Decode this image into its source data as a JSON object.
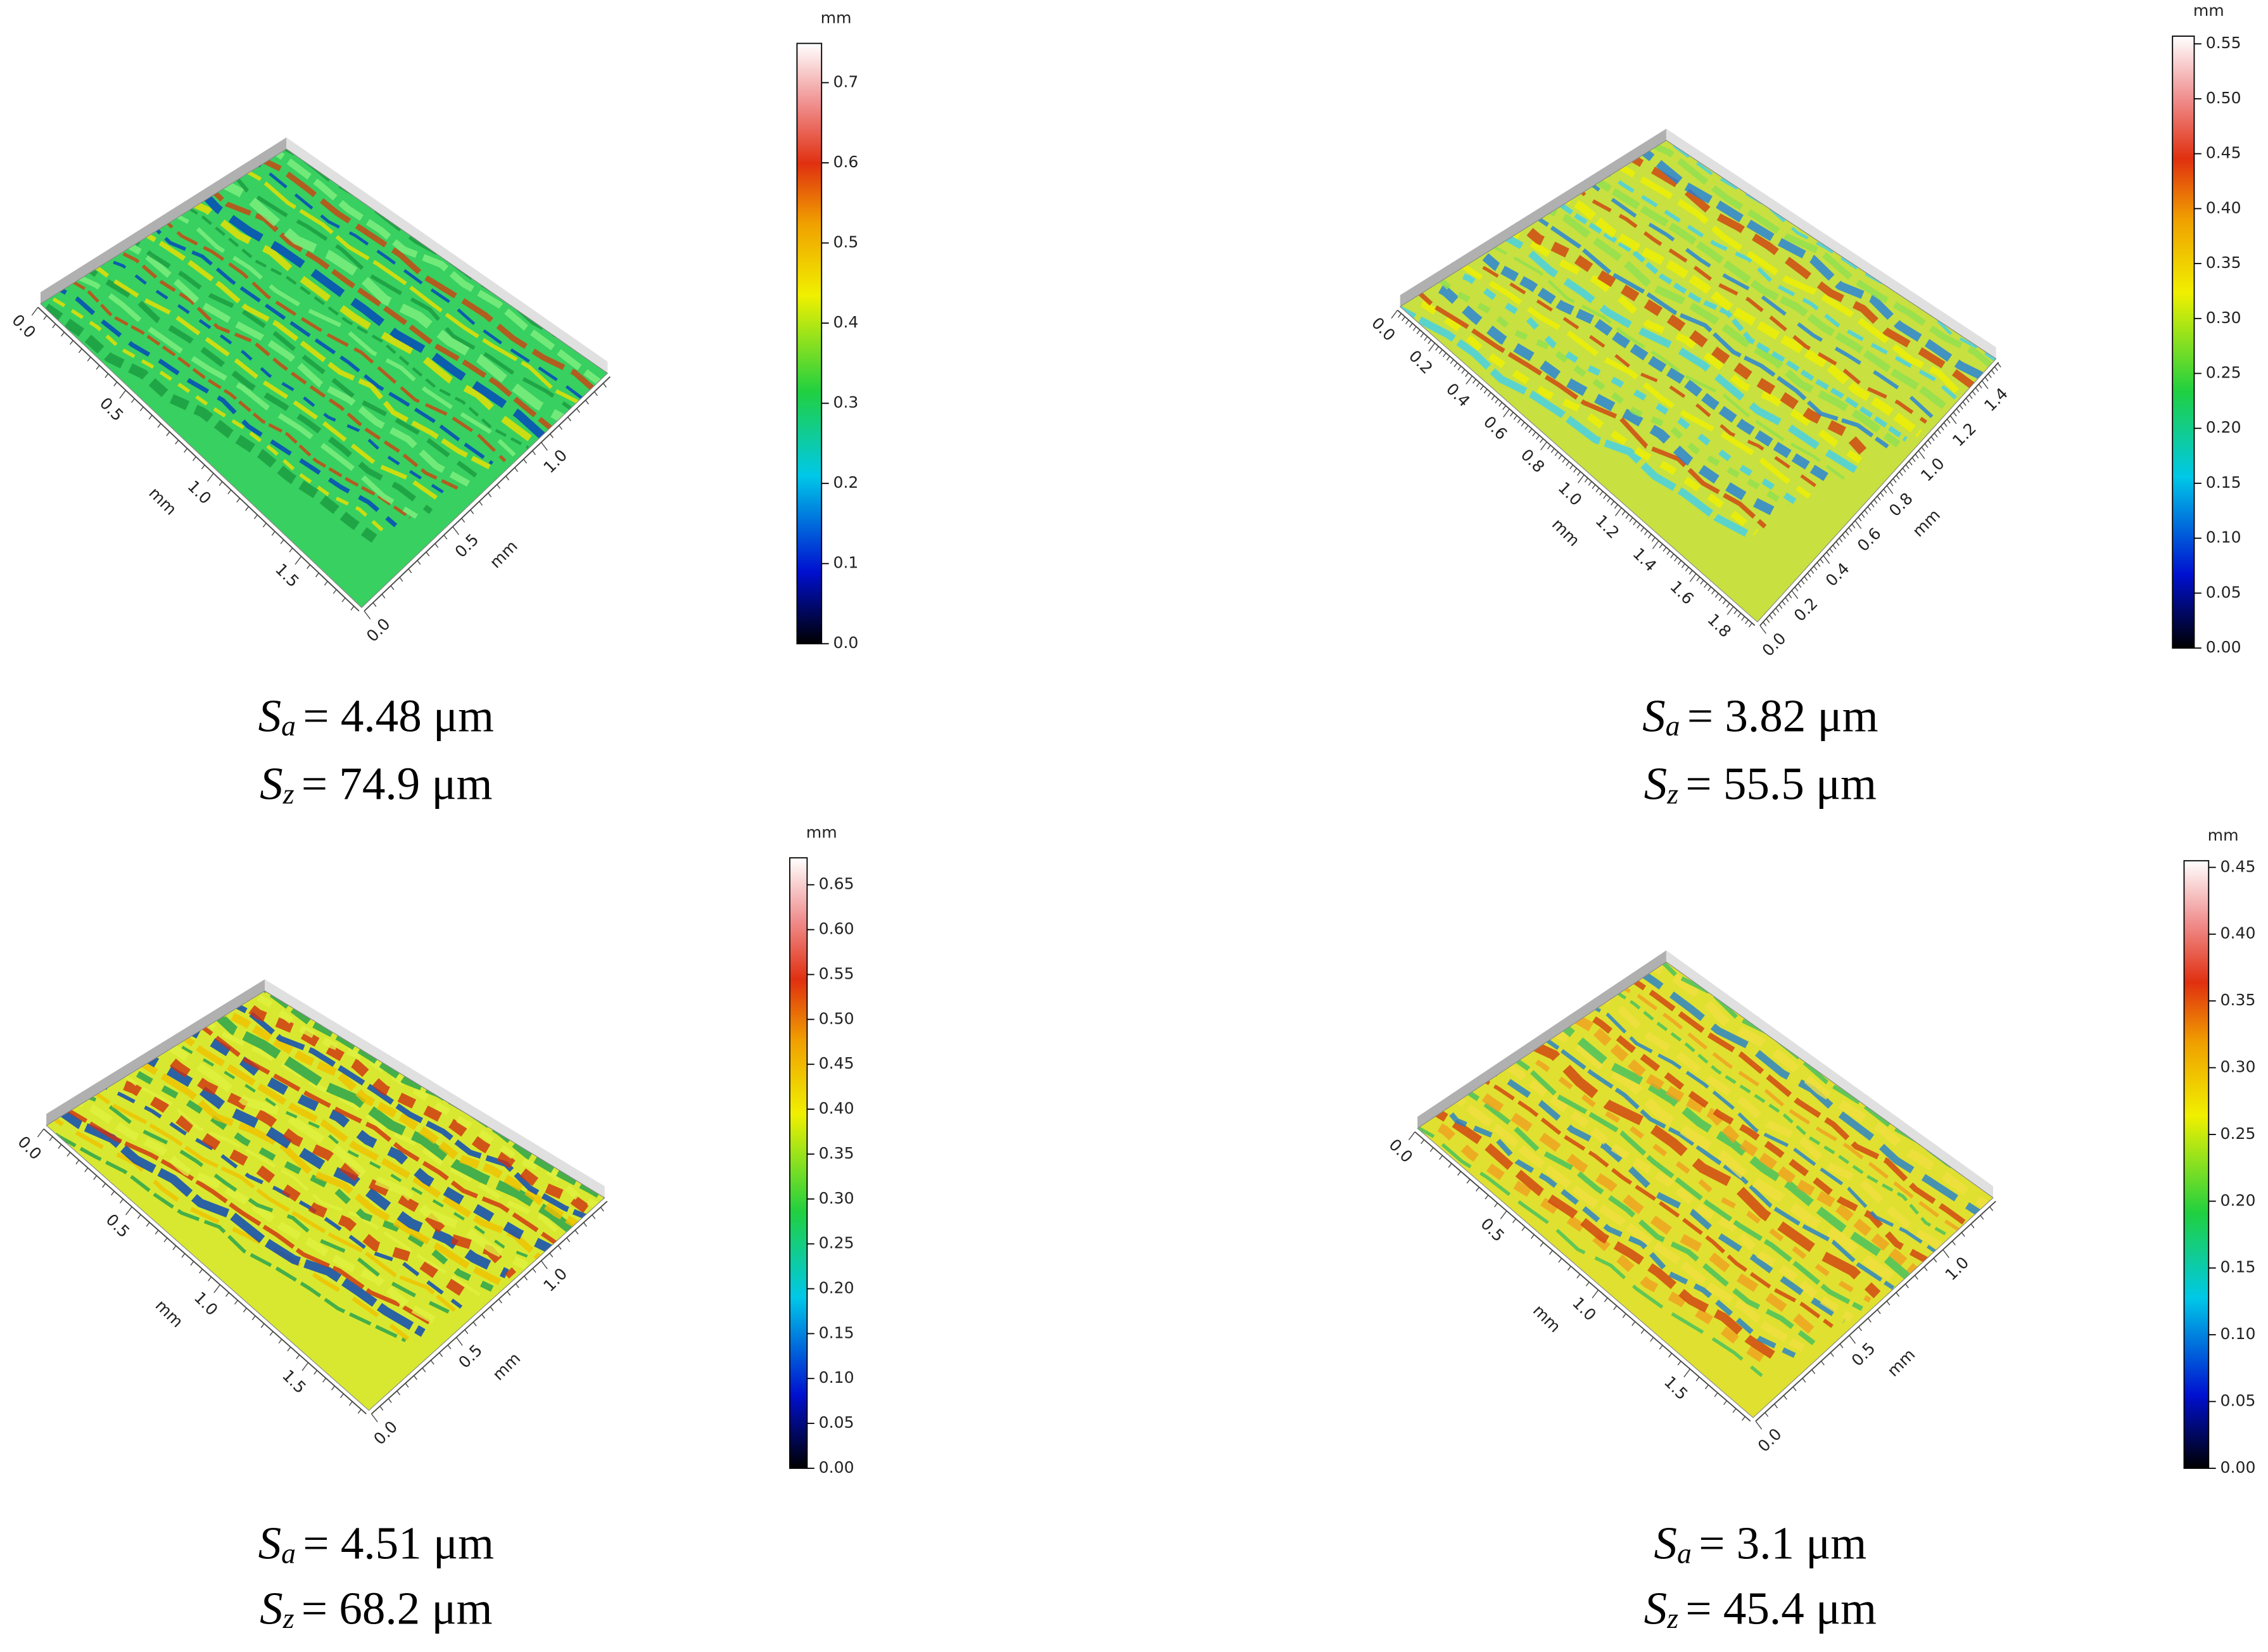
{
  "panels": [
    {
      "colorbar": {
        "unit": "mm",
        "ylim": [
          0,
          0.749
        ],
        "yticks": [
          {
            "value": 0,
            "label": "0.0"
          },
          0.1,
          0.2,
          0.3,
          0.4,
          0.5,
          0.6,
          0.7
        ]
      },
      "axes": {
        "left": {
          "ticks": [
            "0.0",
            "0.5",
            "1.0",
            "1.5"
          ],
          "label": "mm"
        },
        "right": {
          "ticks": [
            "0.0",
            "0.5",
            "1.0"
          ],
          "label": "mm"
        }
      },
      "sa": {
        "symbol": "S",
        "subscript": "a",
        "text": "= 4.48 μm"
      },
      "sz": {
        "symbol": "S",
        "subscript": "z",
        "text": "= 74.9 μm"
      }
    },
    {
      "colorbar": {
        "unit": "mm",
        "ylim": [
          0,
          0.557
        ],
        "yticks": [
          {
            "value": 0,
            "label": "0.00"
          },
          0.05,
          {
            "value": 0.1,
            "label": "0.10"
          },
          0.15,
          {
            "value": 0.2,
            "label": "0.20"
          },
          0.25,
          {
            "value": 0.3,
            "label": "0.30"
          },
          0.35,
          {
            "value": 0.4,
            "label": "0.40"
          },
          0.45,
          {
            "value": 0.5,
            "label": "0.50"
          },
          0.55
        ]
      },
      "axes": {
        "left": {
          "ticks": [
            "0.0",
            "0.2",
            "0.4",
            "0.6",
            "0.8",
            "1.0",
            "1.2",
            "1.4",
            "1.6",
            "1.8"
          ],
          "label": "mm"
        },
        "right": {
          "ticks": [
            "0.0",
            "0.2",
            "0.4",
            "0.6",
            "0.8",
            "1.0",
            "1.2",
            "1.4"
          ],
          "label": "mm"
        }
      },
      "sa": {
        "symbol": "S",
        "subscript": "a",
        "text": "= 3.82 μm"
      },
      "sz": {
        "symbol": "S",
        "subscript": "z",
        "text": "= 55.5 μm"
      }
    },
    {
      "colorbar": {
        "unit": "mm",
        "ylim": [
          0,
          0.68
        ],
        "yticks": [
          {
            "value": 0,
            "label": "0.00"
          },
          0.05,
          {
            "value": 0.1,
            "label": "0.10"
          },
          0.15,
          {
            "value": 0.2,
            "label": "0.20"
          },
          0.25,
          {
            "value": 0.3,
            "label": "0.30"
          },
          0.35,
          {
            "value": 0.4,
            "label": "0.40"
          },
          0.45,
          {
            "value": 0.5,
            "label": "0.50"
          },
          0.55,
          {
            "value": 0.6,
            "label": "0.60"
          },
          0.65
        ]
      },
      "axes": {
        "left": {
          "ticks": [
            "0.0",
            "0.5",
            "1.0",
            "1.5"
          ],
          "label": "mm"
        },
        "right": {
          "ticks": [
            "0.0",
            "0.5",
            "1.0"
          ],
          "label": "mm"
        }
      },
      "sa": {
        "symbol": "S",
        "subscript": "a",
        "text": "= 4.51 μm"
      },
      "sz": {
        "symbol": "S",
        "subscript": "z",
        "text": "= 68.2 μm"
      }
    },
    {
      "colorbar": {
        "unit": "mm",
        "ylim": [
          0,
          0.455
        ],
        "yticks": [
          {
            "value": 0,
            "label": "0.00"
          },
          0.05,
          {
            "value": 0.1,
            "label": "0.10"
          },
          0.15,
          {
            "value": 0.2,
            "label": "0.20"
          },
          0.25,
          {
            "value": 0.3,
            "label": "0.30"
          },
          0.35,
          {
            "value": 0.4,
            "label": "0.40"
          },
          0.45
        ]
      },
      "axes": {
        "left": {
          "ticks": [
            "0.0",
            "0.5",
            "1.0",
            "1.5"
          ],
          "label": "mm"
        },
        "right": {
          "ticks": [
            "0.0",
            "0.5",
            "1.0"
          ],
          "label": "mm"
        }
      },
      "sa": {
        "symbol": "S",
        "subscript": "a",
        "text": "= 3.1 μm"
      },
      "sz": {
        "symbol": "S",
        "subscript": "z",
        "text": "= 45.4 μm"
      }
    }
  ]
}
